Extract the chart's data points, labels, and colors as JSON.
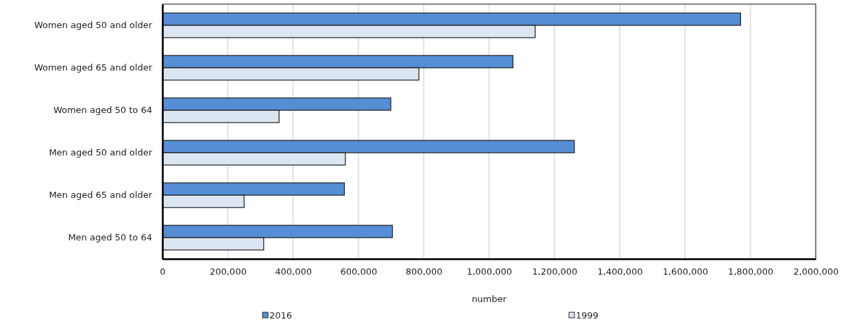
{
  "chart_data": {
    "type": "bar",
    "orientation": "horizontal",
    "xlabel": "number",
    "categories": [
      "Women aged 50 and older",
      "Women aged 65 and older",
      "Women aged 50 to 64",
      "Men aged 50 and older",
      "Men aged 65 and older",
      "Men aged 50 to 64"
    ],
    "series": [
      {
        "name": "2016",
        "color": "#558ed5",
        "values": [
          1770000,
          1073000,
          699000,
          1261000,
          557000,
          704000
        ]
      },
      {
        "name": "1999",
        "color": "#dce6f2",
        "values": [
          1141000,
          785000,
          357000,
          560000,
          250000,
          310000
        ]
      }
    ],
    "xlim": [
      0,
      2000000
    ],
    "xticks": [
      0,
      {
        "value": 200000,
        "label": "200,000"
      },
      {
        "value": 400000,
        "label": "400,000"
      },
      {
        "value": 600000,
        "label": "600,000"
      },
      {
        "value": 800000,
        "label": "800,000"
      },
      {
        "value": 1000000,
        "label": "1,000,000"
      },
      {
        "value": 1200000,
        "label": "1,200,000"
      },
      {
        "value": 1400000,
        "label": "1,400,000"
      },
      {
        "value": 1600000,
        "label": "1,600,000"
      },
      {
        "value": 1800000,
        "label": "1,800,000"
      },
      {
        "value": 2000000,
        "label": "2,000,000"
      }
    ],
    "grid": "x",
    "legend": "bottom"
  }
}
